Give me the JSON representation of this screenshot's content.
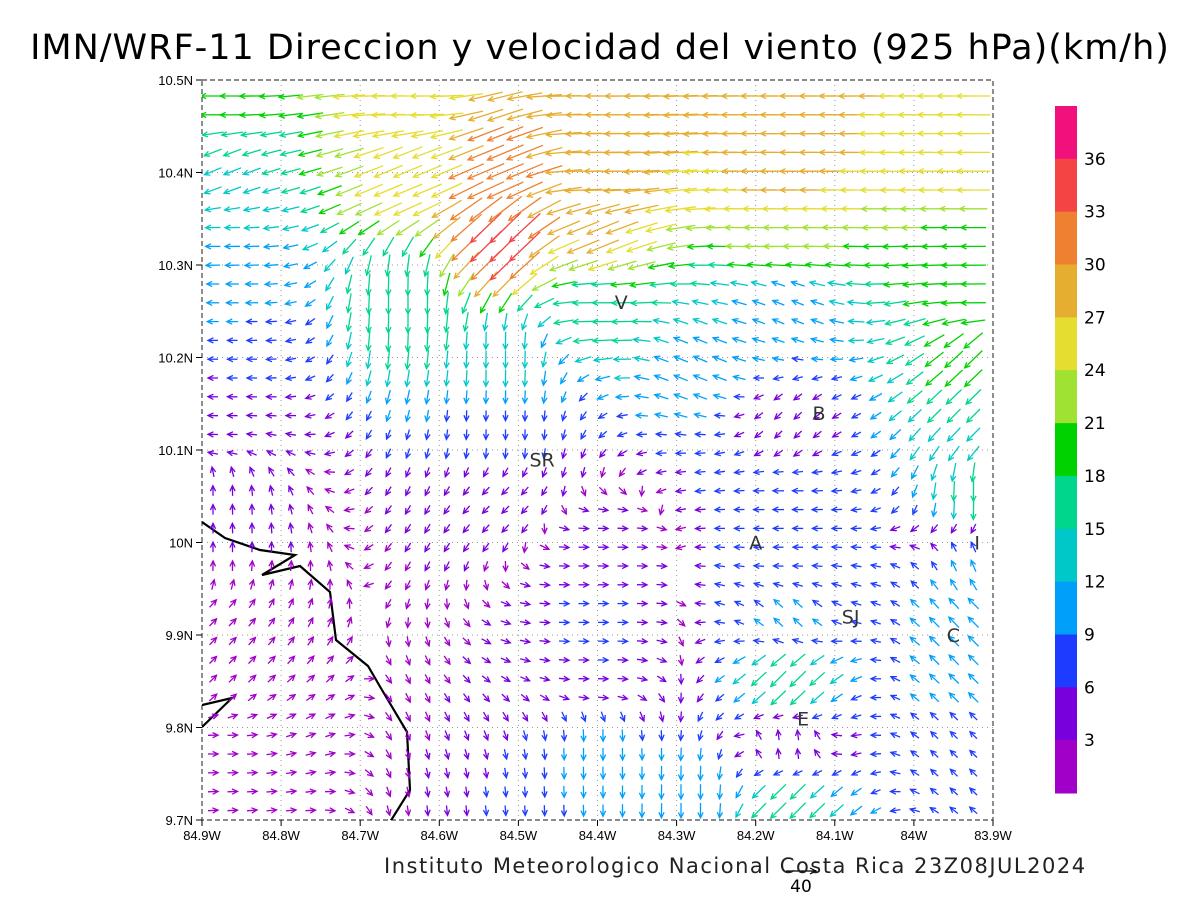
{
  "title": "IMN/WRF-11 Direccion y velocidad del viento (925 hPa)(km/h)",
  "footer": "Instituto Meteorologico Nacional Costa Rica 23Z08JUL2024",
  "reference_vector": {
    "label": "40",
    "speed": 40
  },
  "axes": {
    "x_ticks": [
      "84.9W",
      "84.8W",
      "84.7W",
      "84.6W",
      "84.5W",
      "84.4W",
      "84.3W",
      "84.2W",
      "84.1W",
      "84W",
      "83.9W"
    ],
    "y_ticks": [
      "10.5N",
      "10.4N",
      "10.3N",
      "10.2N",
      "10.1N",
      "10N",
      "9.9N",
      "9.8N",
      "9.7N"
    ],
    "lon_range": [
      -84.9,
      -83.9
    ],
    "lat_range": [
      9.7,
      10.5
    ],
    "grid": true
  },
  "colorbar": {
    "labels": [
      "36",
      "33",
      "30",
      "27",
      "24",
      "21",
      "18",
      "15",
      "12",
      "9",
      "6",
      "3"
    ],
    "colors": [
      "#f0117c",
      "#f54444",
      "#ee8030",
      "#e5ae30",
      "#e5dd30",
      "#a0e232",
      "#00d200",
      "#00d68c",
      "#00c8c8",
      "#00a0fa",
      "#1e3cff",
      "#7800dc",
      "#a000c8"
    ]
  },
  "places": [
    {
      "label": "V",
      "lon": -84.37,
      "lat": 10.26
    },
    {
      "label": "SR",
      "lon": -84.47,
      "lat": 10.09
    },
    {
      "label": "B",
      "lon": -84.12,
      "lat": 10.14
    },
    {
      "label": "A",
      "lon": -84.2,
      "lat": 10.0
    },
    {
      "label": "I",
      "lon": -83.92,
      "lat": 10.0
    },
    {
      "label": "SJ",
      "lon": -84.08,
      "lat": 9.92
    },
    {
      "label": "C",
      "lon": -83.95,
      "lat": 9.9
    },
    {
      "label": "E",
      "lon": -84.14,
      "lat": 9.81
    }
  ],
  "wind_field": {
    "grid_lon": [
      -84.88,
      -84.76,
      -84.64,
      -84.52,
      -84.4,
      -84.28,
      -84.16,
      -84.04,
      -83.92
    ],
    "grid_lat": [
      10.48,
      10.4,
      10.33,
      10.26,
      10.2,
      10.12,
      10.05,
      9.98,
      9.92,
      9.85,
      9.78,
      9.72
    ],
    "direction": [
      "from E in north",
      "S winds west of 84.5W near 10.2N",
      "NW in southeast"
    ],
    "samples": [
      {
        "lon": -84.88,
        "lat": 10.48,
        "speed": 20,
        "dir": "W"
      },
      {
        "lon": -84.64,
        "lat": 10.48,
        "speed": 27,
        "dir": "W"
      },
      {
        "lon": -84.4,
        "lat": 10.48,
        "speed": 28,
        "dir": "W"
      },
      {
        "lon": -84.16,
        "lat": 10.48,
        "speed": 29,
        "dir": "W"
      },
      {
        "lon": -83.92,
        "lat": 10.48,
        "speed": 27,
        "dir": "W"
      },
      {
        "lon": -84.88,
        "lat": 10.4,
        "speed": 15,
        "dir": "WSW"
      },
      {
        "lon": -84.64,
        "lat": 10.4,
        "speed": 25,
        "dir": "WSW"
      },
      {
        "lon": -84.52,
        "lat": 10.4,
        "speed": 32,
        "dir": "WSW"
      },
      {
        "lon": -84.4,
        "lat": 10.4,
        "speed": 30,
        "dir": "W"
      },
      {
        "lon": -84.16,
        "lat": 10.4,
        "speed": 29,
        "dir": "W"
      },
      {
        "lon": -83.92,
        "lat": 10.4,
        "speed": 27,
        "dir": "W"
      },
      {
        "lon": -84.88,
        "lat": 10.33,
        "speed": 12,
        "dir": "W"
      },
      {
        "lon": -84.52,
        "lat": 10.33,
        "speed": 35,
        "dir": "SW"
      },
      {
        "lon": -84.4,
        "lat": 10.33,
        "speed": 28,
        "dir": "WSW"
      },
      {
        "lon": -84.16,
        "lat": 10.33,
        "speed": 24,
        "dir": "W"
      },
      {
        "lon": -83.92,
        "lat": 10.33,
        "speed": 20,
        "dir": "W"
      },
      {
        "lon": -84.88,
        "lat": 10.26,
        "speed": 10,
        "dir": "W"
      },
      {
        "lon": -84.64,
        "lat": 10.26,
        "speed": 18,
        "dir": "S"
      },
      {
        "lon": -84.4,
        "lat": 10.26,
        "speed": 17,
        "dir": "W"
      },
      {
        "lon": -84.16,
        "lat": 10.26,
        "speed": 10,
        "dir": "WNW"
      },
      {
        "lon": -83.92,
        "lat": 10.26,
        "speed": 20,
        "dir": "W"
      },
      {
        "lon": -84.88,
        "lat": 10.2,
        "speed": 6,
        "dir": "W"
      },
      {
        "lon": -84.52,
        "lat": 10.2,
        "speed": 14,
        "dir": "S"
      },
      {
        "lon": -84.28,
        "lat": 10.2,
        "speed": 12,
        "dir": "WNW"
      },
      {
        "lon": -83.92,
        "lat": 10.2,
        "speed": 20,
        "dir": "SW"
      },
      {
        "lon": -84.88,
        "lat": 10.12,
        "speed": 5,
        "dir": "W"
      },
      {
        "lon": -84.52,
        "lat": 10.12,
        "speed": 8,
        "dir": "S"
      },
      {
        "lon": -84.16,
        "lat": 10.12,
        "speed": 5,
        "dir": "SW"
      },
      {
        "lon": -83.92,
        "lat": 10.12,
        "speed": 15,
        "dir": "SW"
      },
      {
        "lon": -84.88,
        "lat": 10.05,
        "speed": 6,
        "dir": "N"
      },
      {
        "lon": -84.52,
        "lat": 10.05,
        "speed": 4,
        "dir": "SW"
      },
      {
        "lon": -84.16,
        "lat": 10.05,
        "speed": 9,
        "dir": "W"
      },
      {
        "lon": -83.92,
        "lat": 10.05,
        "speed": 17,
        "dir": "S"
      },
      {
        "lon": -84.88,
        "lat": 9.98,
        "speed": 3,
        "dir": "N"
      },
      {
        "lon": -84.4,
        "lat": 9.98,
        "speed": 5,
        "dir": "E"
      },
      {
        "lon": -84.16,
        "lat": 9.98,
        "speed": 8,
        "dir": "W"
      },
      {
        "lon": -83.92,
        "lat": 9.98,
        "speed": 10,
        "dir": "NNW"
      },
      {
        "lon": -84.88,
        "lat": 9.92,
        "speed": 3,
        "dir": "NE"
      },
      {
        "lon": -84.4,
        "lat": 9.92,
        "speed": 7,
        "dir": "E"
      },
      {
        "lon": -84.16,
        "lat": 9.92,
        "speed": 10,
        "dir": "NW"
      },
      {
        "lon": -83.92,
        "lat": 9.92,
        "speed": 12,
        "dir": "NW"
      },
      {
        "lon": -84.88,
        "lat": 9.85,
        "speed": 2,
        "dir": "NE"
      },
      {
        "lon": -84.4,
        "lat": 9.85,
        "speed": 6,
        "dir": "E"
      },
      {
        "lon": -84.16,
        "lat": 9.85,
        "speed": 18,
        "dir": "SW"
      },
      {
        "lon": -83.92,
        "lat": 9.85,
        "speed": 11,
        "dir": "NW"
      },
      {
        "lon": -84.88,
        "lat": 9.78,
        "speed": 2,
        "dir": "E"
      },
      {
        "lon": -84.4,
        "lat": 9.78,
        "speed": 10,
        "dir": "S"
      },
      {
        "lon": -84.16,
        "lat": 9.78,
        "speed": 6,
        "dir": "N"
      },
      {
        "lon": -83.92,
        "lat": 9.78,
        "speed": 7,
        "dir": "NW"
      },
      {
        "lon": -84.28,
        "lat": 9.72,
        "speed": 12,
        "dir": "S"
      },
      {
        "lon": -84.16,
        "lat": 9.72,
        "speed": 18,
        "dir": "SW"
      }
    ]
  }
}
